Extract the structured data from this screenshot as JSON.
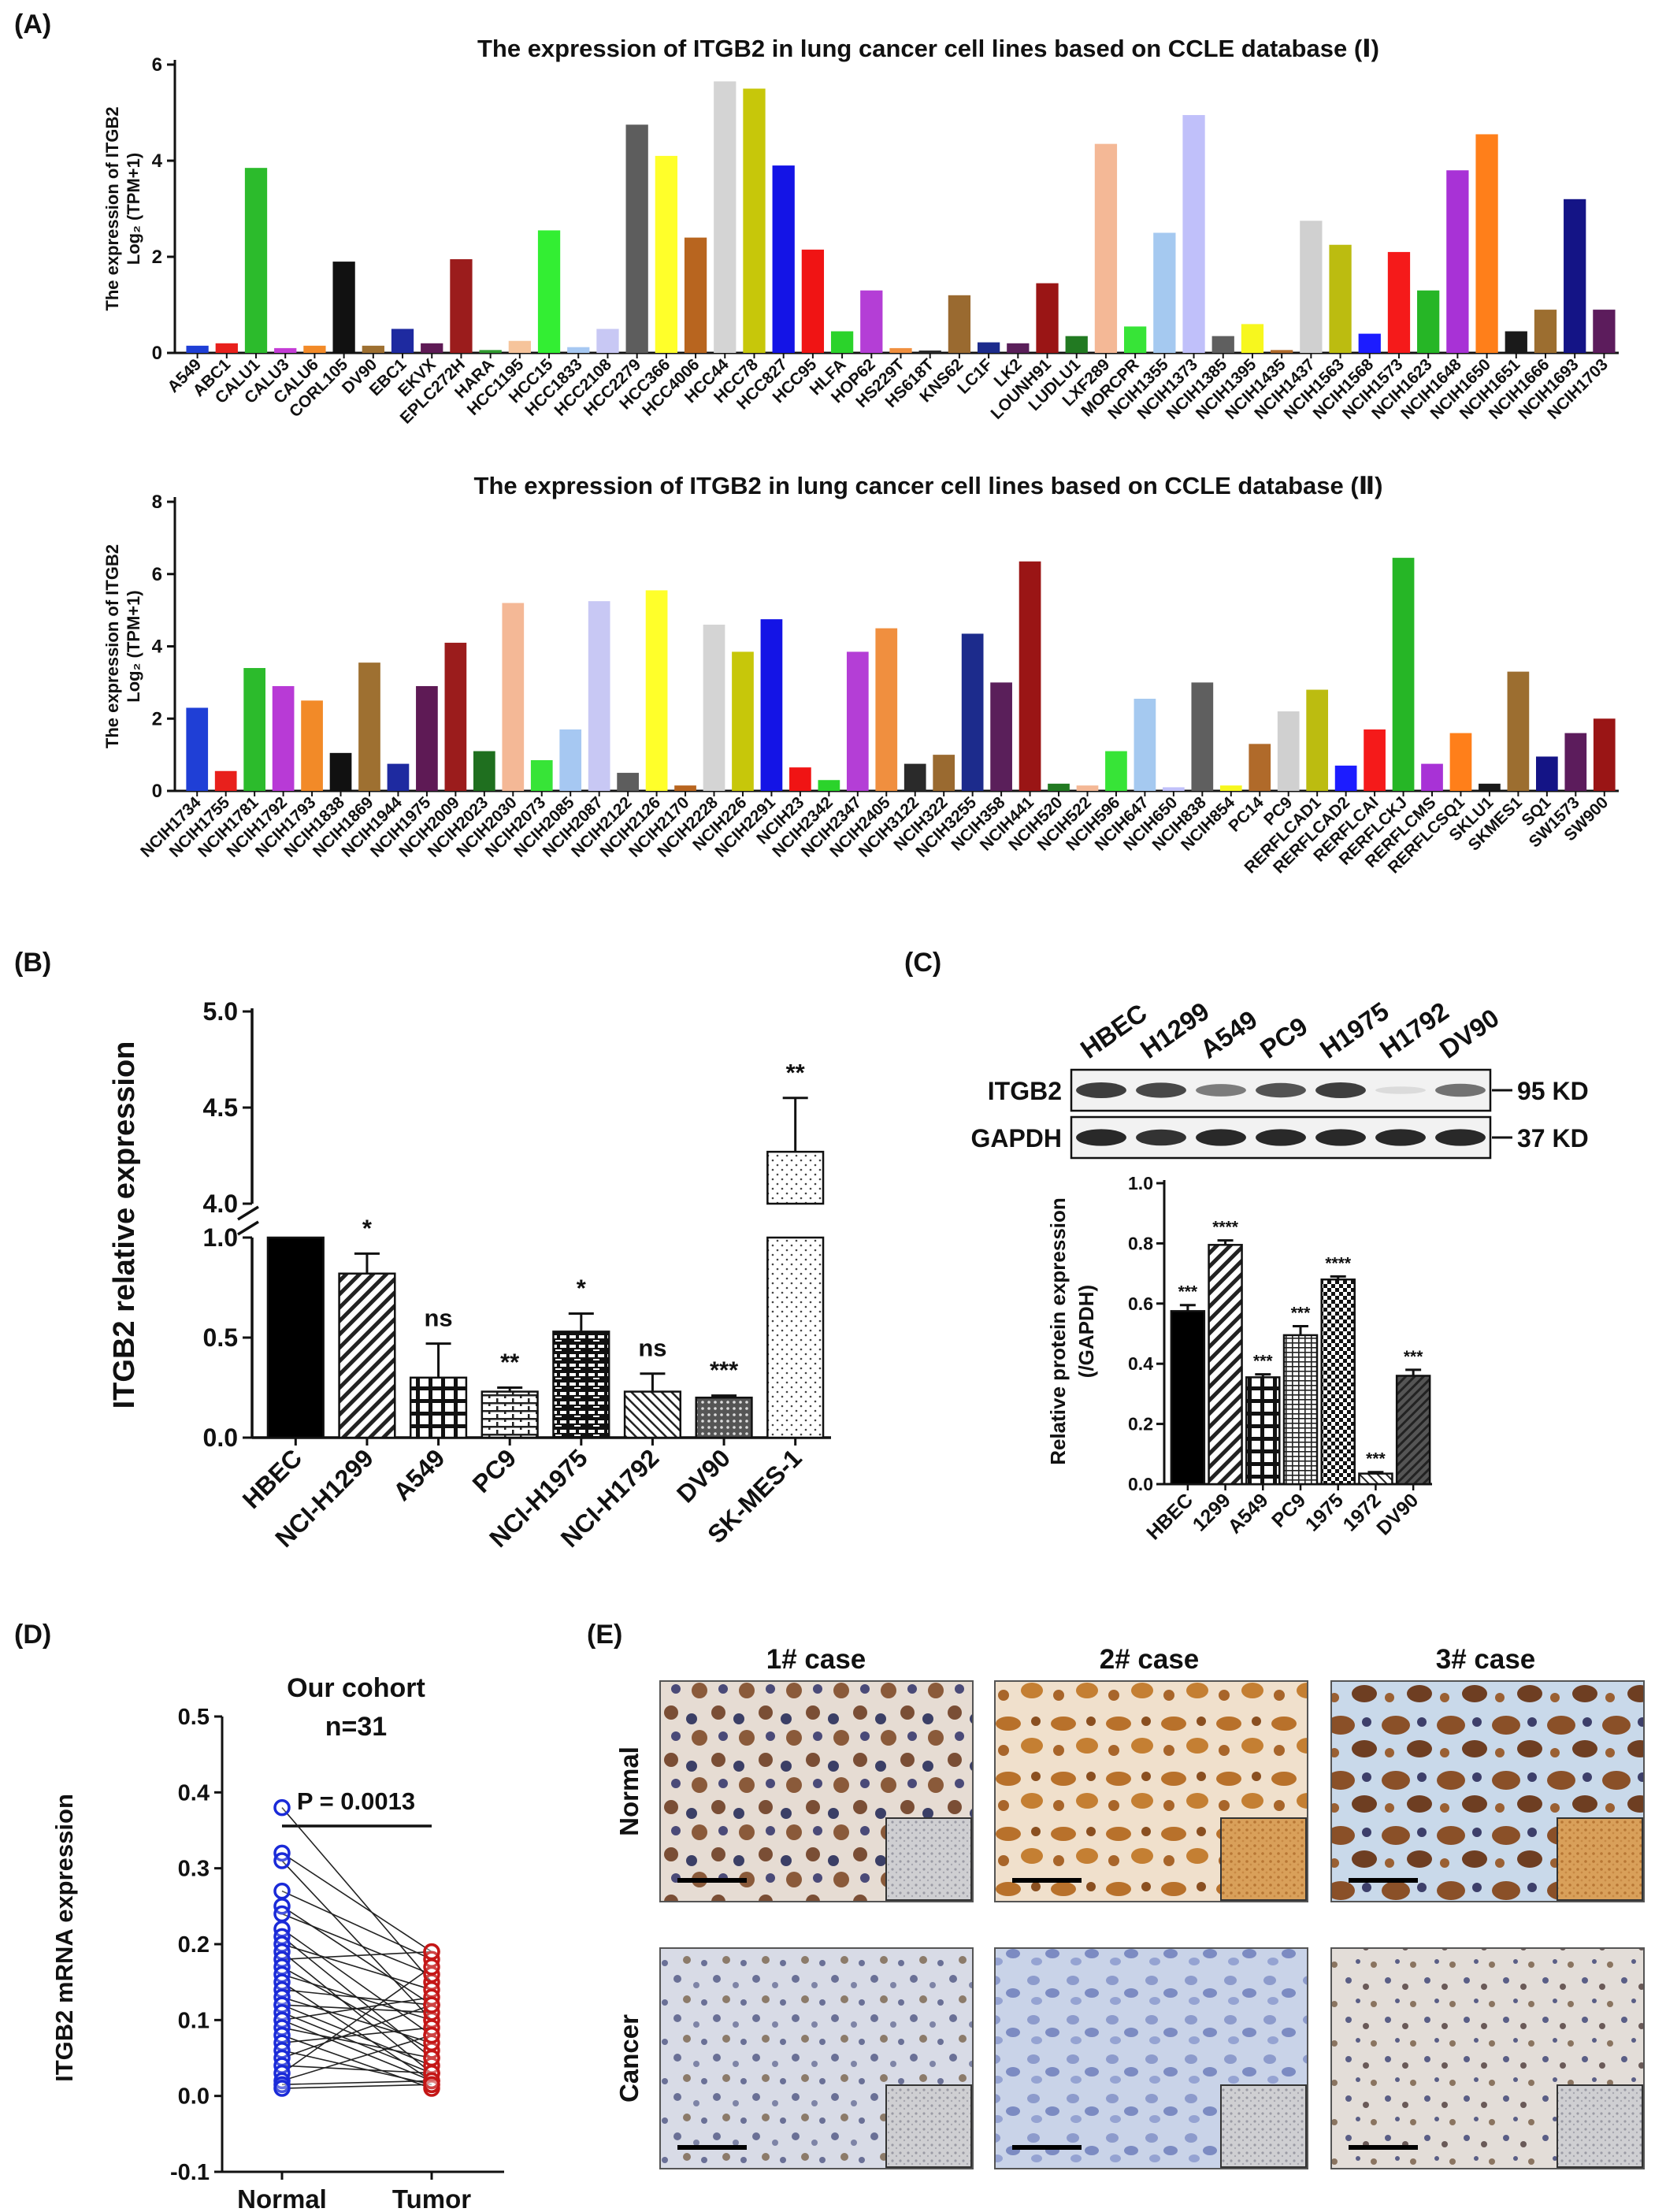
{
  "panel_labels": {
    "a": "(A)",
    "b": "(B)",
    "c": "(C)",
    "d": "(D)",
    "e": "(E)"
  },
  "chart_data": [
    {
      "id": "A1",
      "type": "bar",
      "title": "The expression of ITGB2 in lung cancer cell lines based on CCLE database (Ⅰ)",
      "ylabel_line1": "The expression of ITGB2",
      "ylabel_line2": "Log₂ (TPM+1)",
      "ylim": [
        0,
        6
      ],
      "yticks": [
        0,
        2,
        4,
        6
      ],
      "categories": [
        "A549",
        "ABC1",
        "CALU1",
        "CALU3",
        "CALU6",
        "CORL105",
        "DV90",
        "EBC1",
        "EKVX",
        "EPLC272H",
        "HARA",
        "HCC1195",
        "HCC15",
        "HCC1833",
        "HCC2108",
        "HCC2279",
        "HCC366",
        "HCC4006",
        "HCC44",
        "HCC78",
        "HCC827",
        "HCC95",
        "HLFA",
        "HOP62",
        "HS229T",
        "HS618T",
        "KNS62",
        "LC1F",
        "LK2",
        "LOUNH91",
        "LUDLU1",
        "LXF289",
        "MORCPR",
        "NCIH1355",
        "NCIH1373",
        "NCIH1385",
        "NCIH1395",
        "NCIH1435",
        "NCIH1437",
        "NCIH1563",
        "NCIH1568",
        "NCIH1573",
        "NCIH1623",
        "NCIH1648",
        "NCIH1650",
        "NCIH1651",
        "NCIH1666",
        "NCIH1693",
        "NCIH1703"
      ],
      "values": [
        0.15,
        0.2,
        3.85,
        0.1,
        0.15,
        1.9,
        0.15,
        0.5,
        0.2,
        1.95,
        0.06,
        0.25,
        2.55,
        0.12,
        0.5,
        4.75,
        4.1,
        2.4,
        5.65,
        5.5,
        3.9,
        2.15,
        0.45,
        1.3,
        0.1,
        0.05,
        1.2,
        0.22,
        0.2,
        1.45,
        0.35,
        4.35,
        0.55,
        2.5,
        4.95,
        0.35,
        0.6,
        0.06,
        2.75,
        2.25,
        0.4,
        2.1,
        1.3,
        3.8,
        4.55,
        0.45,
        0.9,
        3.2,
        0.9
      ],
      "colors": [
        "#1f3fd6",
        "#e8201c",
        "#2cbb2c",
        "#c43cd6",
        "#f28a28",
        "#111111",
        "#9e7031",
        "#1e2aa0",
        "#5e1a55",
        "#9b1c1c",
        "#2f9a2f",
        "#f6c49b",
        "#33ee33",
        "#a6c8f2",
        "#c8c8f4",
        "#5d5d5d",
        "#ffff2a",
        "#b8651f",
        "#d4d4d4",
        "#c7c70a",
        "#1414e6",
        "#f01414",
        "#2bd32b",
        "#b43ed6",
        "#f08f3f",
        "#2a2a2a",
        "#9a6a30",
        "#1c2b8c",
        "#5a1f5a",
        "#9a1515",
        "#227a22",
        "#f4b896",
        "#37e437",
        "#a5c9f0",
        "#c0c0fa",
        "#5f5f5f",
        "#f7f71e",
        "#b06a2a",
        "#d0d0d0",
        "#bcbc10",
        "#1c1cff",
        "#f51a1a",
        "#26b626",
        "#a832d6",
        "#ff7f1a",
        "#1a1a1a",
        "#9c6e30",
        "#141486",
        "#5c1c5c"
      ]
    },
    {
      "id": "A2",
      "type": "bar",
      "title": "The expression of ITGB2 in lung cancer cell lines based on CCLE database (Ⅱ)",
      "ylabel_line1": "The expression of ITGB2",
      "ylabel_line2": "Log₂ (TPM+1)",
      "ylim": [
        0,
        8
      ],
      "yticks": [
        0,
        2,
        4,
        6,
        8
      ],
      "categories": [
        "NCIH1734",
        "NCIH1755",
        "NCIH1781",
        "NCIH1792",
        "NCIH1793",
        "NCIH1838",
        "NCIH1869",
        "NCIH1944",
        "NCIH1975",
        "NCIH2009",
        "NCIH2023",
        "NCIH2030",
        "NCIH2073",
        "NCIH2085",
        "NCIH2087",
        "NCIH2122",
        "NCIH2126",
        "NCIH2170",
        "NCIH2228",
        "NCIH226",
        "NCIH2291",
        "NCIH23",
        "NCIH2342",
        "NCIH2347",
        "NCIH2405",
        "NCIH3122",
        "NCIH322",
        "NCIH3255",
        "NCIH358",
        "NCIH441",
        "NCIH520",
        "NCIH522",
        "NCIH596",
        "NCIH647",
        "NCIH650",
        "NCIH838",
        "NCIH854",
        "PC14",
        "PC9",
        "RERFLCAD1",
        "RERFLCAD2",
        "RERFLCAI",
        "RERFLCKJ",
        "RERFLCMS",
        "RERFLCSQ1",
        "SKLU1",
        "SKMES1",
        "SQ1",
        "SW1573",
        "SW900"
      ],
      "values": [
        2.3,
        0.55,
        3.4,
        2.9,
        2.5,
        1.05,
        3.55,
        0.75,
        2.9,
        4.1,
        1.1,
        5.2,
        0.85,
        1.7,
        5.25,
        0.5,
        5.55,
        0.15,
        4.6,
        3.85,
        4.75,
        0.65,
        0.3,
        3.85,
        4.5,
        0.75,
        1.0,
        4.35,
        3.0,
        6.35,
        0.2,
        0.15,
        1.1,
        2.55,
        0.1,
        3.0,
        0.15,
        1.3,
        2.2,
        2.8,
        0.7,
        1.7,
        6.45,
        0.75,
        1.6,
        0.2,
        3.3,
        0.95,
        1.6,
        2.0
      ],
      "colors": [
        "#1f3fd6",
        "#e8201c",
        "#2cbb2c",
        "#b83ad6",
        "#f28a28",
        "#111111",
        "#9e7031",
        "#1e2aa0",
        "#5e1a55",
        "#9b1c1c",
        "#1f6f1f",
        "#f4b896",
        "#37e437",
        "#a6c8f2",
        "#c8c8f4",
        "#5d5d5d",
        "#ffff2a",
        "#b8651f",
        "#d4d4d4",
        "#c7c70a",
        "#1414e6",
        "#f01414",
        "#2bd32b",
        "#b43ed6",
        "#f08f3f",
        "#2a2a2a",
        "#9a6a30",
        "#1c2b8c",
        "#5a1f5a",
        "#9a1515",
        "#227a22",
        "#f4b896",
        "#37e437",
        "#a5c9f0",
        "#c0c0fa",
        "#5f5f5f",
        "#f7f71e",
        "#b06a2a",
        "#d0d0d0",
        "#bcbc10",
        "#1c1cff",
        "#f51a1a",
        "#26b626",
        "#a832d6",
        "#ff7f1a",
        "#1a1a1a",
        "#9c6e30",
        "#141486",
        "#5c1c5c",
        "#9a1515"
      ]
    },
    {
      "id": "B",
      "type": "bar",
      "title": "",
      "ylabel": "ITGB2 relative expression",
      "axis_break": {
        "lower": [
          0,
          1.0
        ],
        "upper": [
          4.0,
          5.0
        ]
      },
      "yticks_lower": [
        "0.0",
        "0.5",
        "1.0"
      ],
      "yticks_upper": [
        "4.0",
        "4.5",
        "5.0"
      ],
      "categories": [
        "HBEC",
        "NCI-H1299",
        "A549",
        "PC9",
        "NCI-H1975",
        "NCI-H1792",
        "DV90",
        "SK-MES-1"
      ],
      "values": [
        1.0,
        0.82,
        0.3,
        0.23,
        0.53,
        0.23,
        0.2,
        4.27
      ],
      "errors": [
        0,
        0.1,
        0.17,
        0.02,
        0.09,
        0.09,
        0.01,
        0.28
      ],
      "significance": [
        "",
        "*",
        "ns",
        "**",
        "*",
        "ns",
        "***",
        "**"
      ],
      "patterns": [
        "solid",
        "diag",
        "grid",
        "brick",
        "brick2",
        "diagthin",
        "dots",
        "finedots"
      ]
    },
    {
      "id": "C_western",
      "type": "table",
      "lanes": [
        "HBEC",
        "H1299",
        "A549",
        "PC9",
        "H1975",
        "H1792",
        "DV90"
      ],
      "rows": [
        {
          "label": "ITGB2",
          "size": "95 KD",
          "intensity": [
            0.85,
            0.8,
            0.55,
            0.75,
            0.85,
            0.1,
            0.6
          ]
        },
        {
          "label": "GAPDH",
          "size": "37 KD",
          "intensity": [
            0.95,
            0.9,
            0.95,
            0.95,
            0.95,
            0.95,
            0.95
          ]
        }
      ]
    },
    {
      "id": "C",
      "type": "bar",
      "ylabel_line1": "Relative protein expression",
      "ylabel_line2": "(/GAPDH)",
      "ylim": [
        0,
        1.0
      ],
      "yticks": [
        "0.0",
        "0.2",
        "0.4",
        "0.6",
        "0.8",
        "1.0"
      ],
      "categories": [
        "HBEC",
        "1299",
        "A549",
        "PC9",
        "1975",
        "1972",
        "DV90"
      ],
      "values": [
        0.575,
        0.795,
        0.355,
        0.495,
        0.68,
        0.035,
        0.36
      ],
      "errors": [
        0.02,
        0.015,
        0.01,
        0.03,
        0.01,
        0.005,
        0.02
      ],
      "significance": [
        "***",
        "****",
        "***",
        "***",
        "****",
        "***",
        "***"
      ],
      "patterns": [
        "solid",
        "diag",
        "grid",
        "hlines",
        "check",
        "diag2",
        "dark"
      ]
    },
    {
      "id": "D",
      "type": "scatter",
      "title": "Our cohort",
      "subtitle": "n=31",
      "annotation": "P = 0.0013",
      "ylabel": "ITGB2 mRNA expression",
      "ylim": [
        -0.1,
        0.5
      ],
      "yticks": [
        "-0.1",
        "0.0",
        "0.1",
        "0.2",
        "0.3",
        "0.4",
        "0.5"
      ],
      "categories": [
        "Normal",
        "Tumor"
      ],
      "normal": [
        0.38,
        0.32,
        0.31,
        0.27,
        0.25,
        0.24,
        0.22,
        0.21,
        0.2,
        0.19,
        0.18,
        0.17,
        0.16,
        0.15,
        0.14,
        0.13,
        0.12,
        0.12,
        0.11,
        0.1,
        0.1,
        0.09,
        0.08,
        0.07,
        0.06,
        0.05,
        0.04,
        0.03,
        0.02,
        0.015,
        0.01
      ],
      "tumor": [
        0.15,
        0.19,
        0.1,
        0.18,
        0.12,
        0.16,
        0.08,
        0.05,
        0.14,
        0.03,
        0.19,
        0.06,
        0.1,
        0.02,
        0.12,
        0.07,
        0.04,
        0.11,
        0.03,
        0.02,
        0.13,
        0.05,
        0.01,
        0.09,
        0.015,
        0.12,
        0.03,
        0.17,
        0.08,
        0.02,
        0.015
      ],
      "colors": {
        "normal": "#1a2ad8",
        "tumor": "#c41616"
      }
    }
  ],
  "panel_e": {
    "columns": [
      "1# case",
      "2# case",
      "3# case"
    ],
    "rows": [
      "Normal",
      "Cancer"
    ]
  }
}
